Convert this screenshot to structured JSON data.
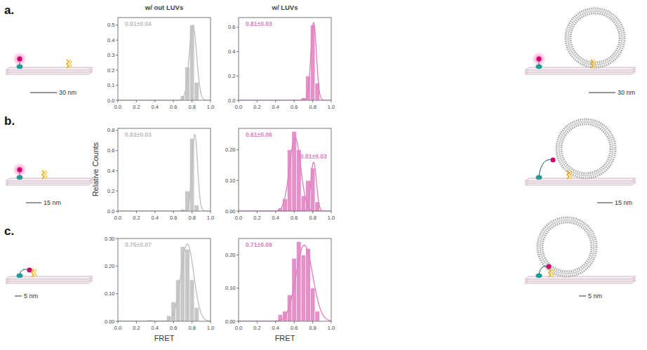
{
  "figure": {
    "panel_letters": [
      "a.",
      "b.",
      "c."
    ],
    "ylabel": "Relative Counts",
    "scale_labels": [
      "30 nm",
      "15 nm",
      "5 nm"
    ]
  },
  "chart_data": [
    {
      "type": "histogram",
      "title": "w/ out LUVs",
      "color": "#bdbdbd",
      "bins": [
        0.325,
        0.375,
        0.425,
        0.475,
        0.525,
        0.575,
        0.625,
        0.675,
        0.725,
        0.775,
        0.825,
        0.875,
        0.925
      ],
      "values": [
        0,
        0,
        0,
        0,
        0,
        0,
        0,
        0.03,
        0.22,
        0.5,
        0.12,
        0
      ],
      "xlim": [
        0,
        1
      ],
      "xticks": [
        {
          "value": 0,
          "label": "0.0"
        },
        {
          "value": 0.2,
          "label": "0.2"
        },
        {
          "value": 0.4,
          "label": "0.4"
        },
        {
          "value": 0.6,
          "label": "0.6"
        },
        {
          "value": 0.8,
          "label": "0.8"
        },
        {
          "value": 1,
          "label": "1.0"
        }
      ],
      "ylim": [
        0,
        0.55
      ],
      "yticks": [
        {
          "value": 0,
          "label": "0.0"
        },
        {
          "value": 0.1,
          "label": "0.1"
        },
        {
          "value": 0.2,
          "label": "0.2"
        },
        {
          "value": 0.3,
          "label": "0.3"
        },
        {
          "value": 0.4,
          "label": "0.4"
        },
        {
          "value": 0.5,
          "label": "0.5"
        }
      ],
      "fits": [
        {
          "mean": 0.81,
          "sd": 0.04,
          "peak": 0.5
        }
      ],
      "annotations": [
        "0.81±0.04"
      ]
    },
    {
      "type": "histogram",
      "title": "w/ LUVs",
      "color": "#e07dc0",
      "bins": [
        0.325,
        0.375,
        0.425,
        0.475,
        0.525,
        0.575,
        0.625,
        0.675,
        0.725,
        0.775,
        0.825,
        0.875,
        0.925
      ],
      "values": [
        0,
        0,
        0,
        0,
        0,
        0,
        0,
        0.02,
        0.2,
        0.62,
        0.14,
        0
      ],
      "xlim": [
        0,
        1
      ],
      "xticks": [
        {
          "value": 0,
          "label": "0.0"
        },
        {
          "value": 0.2,
          "label": "0.2"
        },
        {
          "value": 0.4,
          "label": "0.4"
        },
        {
          "value": 0.6,
          "label": "0.6"
        },
        {
          "value": 0.8,
          "label": "0.8"
        },
        {
          "value": 1,
          "label": "1.0"
        }
      ],
      "ylim": [
        0,
        0.68
      ],
      "yticks": [
        {
          "value": 0,
          "label": "0.0"
        },
        {
          "value": 0.2,
          "label": "0.2"
        },
        {
          "value": 0.4,
          "label": "0.4"
        },
        {
          "value": 0.6,
          "label": "0.6"
        }
      ],
      "fits": [
        {
          "mean": 0.81,
          "sd": 0.03,
          "peak": 0.64
        }
      ],
      "annotations": [
        "0.81±0.03"
      ]
    },
    {
      "type": "histogram",
      "color": "#bdbdbd",
      "bins": [
        0.325,
        0.375,
        0.425,
        0.475,
        0.525,
        0.575,
        0.625,
        0.675,
        0.725,
        0.775,
        0.825,
        0.875,
        0.925
      ],
      "values": [
        0,
        0,
        0,
        0,
        0,
        0,
        0,
        0.02,
        0.2,
        0.72,
        0.06,
        0
      ],
      "xlim": [
        0,
        1
      ],
      "xticks": [
        {
          "value": 0,
          "label": "0.0"
        },
        {
          "value": 0.2,
          "label": "0.2"
        },
        {
          "value": 0.4,
          "label": "0.4"
        },
        {
          "value": 0.6,
          "label": "0.6"
        },
        {
          "value": 0.8,
          "label": "0.8"
        },
        {
          "value": 1,
          "label": "1.0"
        }
      ],
      "ylim": [
        0,
        0.82
      ],
      "yticks": [
        {
          "value": 0,
          "label": "0.0"
        },
        {
          "value": 0.2,
          "label": "0.2"
        },
        {
          "value": 0.4,
          "label": "0.4"
        },
        {
          "value": 0.6,
          "label": "0.6"
        },
        {
          "value": 0.8,
          "label": "0.8"
        }
      ],
      "fits": [
        {
          "mean": 0.83,
          "sd": 0.03,
          "peak": 0.76
        }
      ],
      "annotations": [
        "0.83±0.03"
      ]
    },
    {
      "type": "histogram",
      "color": "#e07dc0",
      "bins": [
        0.325,
        0.375,
        0.425,
        0.475,
        0.525,
        0.575,
        0.625,
        0.675,
        0.725,
        0.775,
        0.825,
        0.875,
        0.925
      ],
      "values": [
        0,
        0,
        0.01,
        0.04,
        0.2,
        0.26,
        0.2,
        0.05,
        0.1,
        0.14,
        0.03,
        0
      ],
      "xlim": [
        0,
        1
      ],
      "xticks": [
        {
          "value": 0,
          "label": "0.0"
        },
        {
          "value": 0.2,
          "label": "0.2"
        },
        {
          "value": 0.4,
          "label": "0.4"
        },
        {
          "value": 0.6,
          "label": "0.6"
        },
        {
          "value": 0.8,
          "label": "0.8"
        },
        {
          "value": 1,
          "label": "1.0"
        }
      ],
      "ylim": [
        0,
        0.27
      ],
      "yticks": [
        {
          "value": 0,
          "label": "0.00"
        },
        {
          "value": 0.1,
          "label": "0.10"
        },
        {
          "value": 0.2,
          "label": "0.20"
        }
      ],
      "fits": [
        {
          "mean": 0.61,
          "sd": 0.06,
          "peak": 0.24
        },
        {
          "mean": 0.81,
          "sd": 0.03,
          "peak": 0.16
        }
      ],
      "annotations": [
        "0.61±0.06",
        "0.81±0.03"
      ]
    },
    {
      "type": "histogram",
      "color": "#bdbdbd",
      "xlabel": "FRET",
      "bins": [
        0.325,
        0.375,
        0.425,
        0.475,
        0.525,
        0.575,
        0.625,
        0.675,
        0.725,
        0.775,
        0.825,
        0.875,
        0.925
      ],
      "values": [
        0.005,
        0,
        0,
        0,
        0.02,
        0.07,
        0.15,
        0.27,
        0.26,
        0.15,
        0.05,
        0
      ],
      "xlim": [
        0,
        1
      ],
      "xticks": [
        {
          "value": 0,
          "label": "0.0"
        },
        {
          "value": 0.2,
          "label": "0.2"
        },
        {
          "value": 0.4,
          "label": "0.4"
        },
        {
          "value": 0.6,
          "label": "0.6"
        },
        {
          "value": 0.8,
          "label": "0.8"
        },
        {
          "value": 1,
          "label": "1.0"
        }
      ],
      "ylim": [
        0,
        0.3
      ],
      "yticks": [
        {
          "value": 0,
          "label": "0.00"
        },
        {
          "value": 0.1,
          "label": "0.10"
        },
        {
          "value": 0.2,
          "label": "0.20"
        },
        {
          "value": 0.3,
          "label": "0.30"
        }
      ],
      "fits": [
        {
          "mean": 0.75,
          "sd": 0.07,
          "peak": 0.28
        }
      ],
      "annotations": [
        "0.75±0.07"
      ]
    },
    {
      "type": "histogram",
      "color": "#e07dc0",
      "xlabel": "FRET",
      "bins": [
        0.325,
        0.375,
        0.425,
        0.475,
        0.525,
        0.575,
        0.625,
        0.675,
        0.725,
        0.775,
        0.825,
        0.875,
        0.925
      ],
      "values": [
        0,
        0,
        0.02,
        0.03,
        0.08,
        0.19,
        0.24,
        0.2,
        0.22,
        0.1,
        0.03,
        0
      ],
      "xlim": [
        0,
        1
      ],
      "xticks": [
        {
          "value": 0,
          "label": "0.0"
        },
        {
          "value": 0.2,
          "label": "0.2"
        },
        {
          "value": 0.4,
          "label": "0.4"
        },
        {
          "value": 0.6,
          "label": "0.6"
        },
        {
          "value": 0.8,
          "label": "0.8"
        },
        {
          "value": 1,
          "label": "1.0"
        }
      ],
      "ylim": [
        0,
        0.25
      ],
      "yticks": [
        {
          "value": 0,
          "label": "0.00"
        },
        {
          "value": 0.1,
          "label": "0.10"
        },
        {
          "value": 0.2,
          "label": "0.20"
        }
      ],
      "fits": [
        {
          "mean": 0.71,
          "sd": 0.09,
          "peak": 0.23
        }
      ],
      "annotations": [
        "0.71±0.09"
      ]
    }
  ]
}
